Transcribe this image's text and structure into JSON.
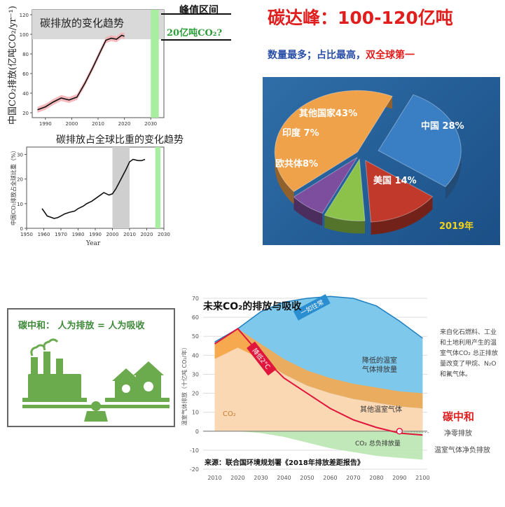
{
  "top_left_chart": {
    "ylabel": "中国CO₂排放(亿吨CO₂/yr⁻¹)",
    "title": "碳排放的变化趋势",
    "peak_label": "峰值区间",
    "peak_value": "20亿吨CO₂?",
    "yticks": [
      "20",
      "40",
      "60",
      "80",
      "100",
      "120"
    ],
    "xticks": [
      "1990",
      "2000",
      "2010",
      "2020",
      "2030"
    ],
    "chart_data": {
      "type": "line",
      "x": [
        1987,
        1990,
        1993,
        1996,
        1999,
        2002,
        2005,
        2008,
        2011,
        2013,
        2015,
        2017,
        2019,
        2020
      ],
      "values": [
        23,
        26,
        31,
        35,
        33,
        36,
        50,
        66,
        83,
        94,
        96,
        95,
        99,
        98
      ],
      "xlim": [
        1985,
        2035
      ],
      "ylim": [
        15,
        125
      ],
      "peak_band_y": [
        95,
        125
      ],
      "target_band_x": [
        2030,
        2032
      ]
    }
  },
  "bottom_left_chart": {
    "title": "碳排放占全球比重的变化趋势",
    "ylabel": "中国CO₂排放占全球比重（%）",
    "xlabel": "Year",
    "yticks": [
      "0",
      "10",
      "20",
      "30"
    ],
    "xticks": [
      "1950",
      "1960",
      "1970",
      "1980",
      "1990",
      "2000",
      "2010",
      "2020",
      "2030"
    ],
    "chart_data": {
      "type": "line",
      "x": [
        1959,
        1960,
        1962,
        1964,
        1966,
        1968,
        1970,
        1972,
        1975,
        1978,
        1980,
        1983,
        1985,
        1988,
        1990,
        1993,
        1995,
        1998,
        2000,
        2002,
        2005,
        2008,
        2010,
        2012,
        2015,
        2017,
        2019
      ],
      "values": [
        8,
        7,
        5,
        4.5,
        4,
        4.3,
        5,
        5.8,
        6.5,
        7,
        8,
        9,
        10,
        11,
        12,
        13.5,
        14.5,
        13.5,
        14,
        16,
        20,
        24,
        27,
        28,
        27.5,
        27.5,
        28
      ],
      "xlim": [
        1950,
        2030
      ],
      "ylim": [
        0,
        33
      ],
      "gray_band_x": [
        2000,
        2010
      ],
      "green_band_x": [
        2025,
        2028
      ]
    }
  },
  "peak_header": {
    "title": "碳达峰：100-120亿吨",
    "subtitle_blue": "数量最多；占比最高，",
    "subtitle_red": "双全球第一"
  },
  "pie": {
    "year": "2019年",
    "chart_data": {
      "type": "pie",
      "slices": [
        {
          "label": "中国 28%",
          "value": 28,
          "color": "#3a7fc4"
        },
        {
          "label": "美国 14%",
          "value": 14,
          "color": "#c0392b"
        },
        {
          "label": "欧共体8%",
          "value": 8,
          "color": "#8cc24a"
        },
        {
          "label": "印度 7%",
          "value": 7,
          "color": "#7d4e9e"
        },
        {
          "label": "其他国家43%",
          "value": 43,
          "color": "#f0a24a"
        }
      ]
    }
  },
  "neutral_box": {
    "title": "碳中和：  人为排放 = 人为吸收"
  },
  "future_chart": {
    "title": "未来CO₂的排放与吸收",
    "ylabel": "温室气体排放（十亿吨 CO₂/年）",
    "yticks": [
      "70",
      "60",
      "50",
      "40",
      "30",
      "20",
      "10",
      "0",
      "-10",
      "-20"
    ],
    "xticks": [
      "2010",
      "2020",
      "2030",
      "2040",
      "2050",
      "2060",
      "2070",
      "2080",
      "2090",
      "2100"
    ],
    "path_label_1": "一如往常",
    "path_label_2": "降低2°C",
    "region_ghg_reduced": "降低的温室气体排放量",
    "region_other_gases": "其他温室气体",
    "region_co2": "CO₂",
    "region_co2_negative": "CO₂ 总负排放量",
    "source": "来源：联合国环境规划署《2018年排放差距报告》",
    "note": "来自化石燃料、工业和土地利用产生的温室气体CO₂ 总正排放量改变了甲烷、N₂O 和氟气体。",
    "carbon_neutral_label": "碳中和",
    "net_zero_label": "净零排放",
    "ghg_net_negative_label": "温室气体净负排放",
    "chart_data": {
      "type": "area",
      "x": [
        2010,
        2020,
        2030,
        2040,
        2050,
        2060,
        2070,
        2080,
        2090,
        2100
      ],
      "business_as_usual": [
        47,
        54,
        63,
        68,
        70,
        71,
        70,
        66,
        58,
        49
      ],
      "two_degree_pathway": [
        46,
        54,
        40,
        28,
        20,
        12,
        6,
        2,
        -1,
        -2
      ],
      "co2_upper": [
        38,
        44,
        38,
        30,
        24,
        20,
        17,
        15,
        13,
        12
      ],
      "co2_negative": [
        0,
        0,
        -1,
        -3,
        -6,
        -9,
        -11,
        -13,
        -14,
        -15
      ],
      "xlim": [
        2005,
        2102
      ],
      "ylim": [
        -20,
        70
      ],
      "net_zero_year": 2090
    }
  }
}
